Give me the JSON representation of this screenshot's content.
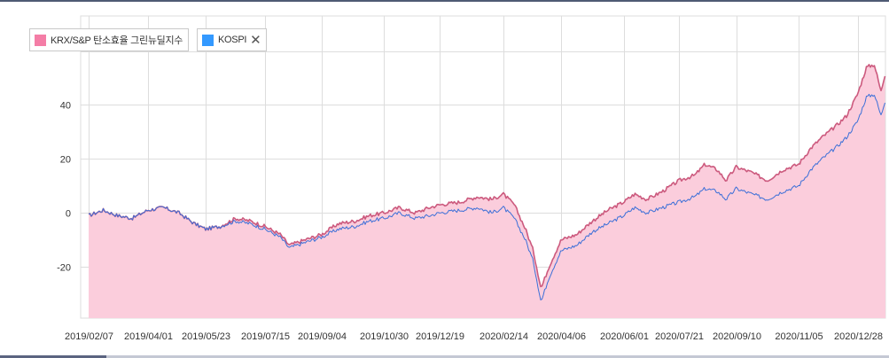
{
  "legend": [
    {
      "label": "KRX/S&P 탄소효율 그린뉴딜지수",
      "color": "#f47da6",
      "closable": false
    },
    {
      "label": "KOSPI",
      "color": "#3399ff",
      "closable": true,
      "close_icon": "close-icon"
    }
  ],
  "colors": {
    "index_line": "#cc5a7e",
    "index_fill": "#fbcddc",
    "kospi_line": "#3b6fd8",
    "grid": "#dddddd"
  },
  "chart_data": {
    "type": "area",
    "title": "",
    "xlabel": "",
    "ylabel": "",
    "ylim": [
      -39,
      73
    ],
    "y_ticks": [
      -20,
      0,
      20,
      40
    ],
    "y_tick_labels": [
      "-20",
      "0",
      "20",
      "40"
    ],
    "x_tick_labels": [
      "2019/02/07",
      "2019/04/01",
      "2019/05/23",
      "2019/07/15",
      "2019/09/04",
      "2019/10/30",
      "2019/12/19",
      "2020/02/14",
      "2020/04/06",
      "2020/06/01",
      "2020/07/21",
      "2020/09/10",
      "2020/11/05",
      "2020/12/28"
    ],
    "grid": true,
    "legend_position": "top-left",
    "series": [
      {
        "name": "KRX/S&P 탄소효율 그린뉴딜지수",
        "style": "area",
        "dates": [
          "2019/02/07",
          "2019/02/20",
          "2019/03/05",
          "2019/03/18",
          "2019/04/01",
          "2019/04/15",
          "2019/04/29",
          "2019/05/13",
          "2019/05/23",
          "2019/06/05",
          "2019/06/19",
          "2019/07/02",
          "2019/07/15",
          "2019/07/29",
          "2019/08/06",
          "2019/08/20",
          "2019/09/04",
          "2019/09/19",
          "2019/10/04",
          "2019/10/17",
          "2019/10/30",
          "2019/11/13",
          "2019/11/27",
          "2019/12/10",
          "2019/12/19",
          "2020/01/06",
          "2020/01/22",
          "2020/02/04",
          "2020/02/14",
          "2020/02/24",
          "2020/03/05",
          "2020/03/12",
          "2020/03/19",
          "2020/03/26",
          "2020/04/06",
          "2020/04/20",
          "2020/05/04",
          "2020/05/18",
          "2020/06/01",
          "2020/06/11",
          "2020/06/22",
          "2020/07/06",
          "2020/07/21",
          "2020/08/04",
          "2020/08/13",
          "2020/08/24",
          "2020/09/01",
          "2020/09/10",
          "2020/09/24",
          "2020/10/08",
          "2020/10/22",
          "2020/11/05",
          "2020/11/16",
          "2020/11/26",
          "2020/12/08",
          "2020/12/18",
          "2020/12/28",
          "2021/01/05",
          "2021/01/12",
          "2021/01/18",
          "2021/01/22"
        ],
        "values": [
          -1,
          1,
          -1,
          -2,
          1,
          2,
          0,
          -4,
          -6,
          -5,
          -2,
          -3,
          -5,
          -8,
          -12,
          -10,
          -8,
          -4,
          -3,
          -1,
          0,
          2,
          0,
          2,
          3,
          4,
          6,
          5,
          7,
          3,
          -6,
          -14,
          -28,
          -20,
          -10,
          -8,
          -3,
          1,
          4,
          7,
          5,
          8,
          12,
          14,
          18,
          16,
          12,
          17,
          15,
          12,
          16,
          18,
          24,
          28,
          32,
          36,
          44,
          54,
          55,
          45,
          52
        ]
      },
      {
        "name": "KOSPI",
        "style": "line",
        "dates": [
          "2019/02/07",
          "2019/02/20",
          "2019/03/05",
          "2019/03/18",
          "2019/04/01",
          "2019/04/15",
          "2019/04/29",
          "2019/05/13",
          "2019/05/23",
          "2019/06/05",
          "2019/06/19",
          "2019/07/02",
          "2019/07/15",
          "2019/07/29",
          "2019/08/06",
          "2019/08/20",
          "2019/09/04",
          "2019/09/19",
          "2019/10/04",
          "2019/10/17",
          "2019/10/30",
          "2019/11/13",
          "2019/11/27",
          "2019/12/10",
          "2019/12/19",
          "2020/01/06",
          "2020/01/22",
          "2020/02/04",
          "2020/02/14",
          "2020/02/24",
          "2020/03/05",
          "2020/03/12",
          "2020/03/19",
          "2020/03/26",
          "2020/04/06",
          "2020/04/20",
          "2020/05/04",
          "2020/05/18",
          "2020/06/01",
          "2020/06/11",
          "2020/06/22",
          "2020/07/06",
          "2020/07/21",
          "2020/08/04",
          "2020/08/13",
          "2020/08/24",
          "2020/09/01",
          "2020/09/10",
          "2020/09/24",
          "2020/10/08",
          "2020/10/22",
          "2020/11/05",
          "2020/11/16",
          "2020/11/26",
          "2020/12/08",
          "2020/12/18",
          "2020/12/28",
          "2021/01/05",
          "2021/01/12",
          "2021/01/18",
          "2021/01/22"
        ],
        "values": [
          -1,
          1,
          -1,
          -2,
          1,
          2,
          0,
          -4,
          -6,
          -5,
          -3,
          -4,
          -6,
          -9,
          -13,
          -11,
          -9,
          -6,
          -5,
          -3,
          -2,
          0,
          -2,
          -1,
          0,
          1,
          2,
          0,
          2,
          -2,
          -10,
          -18,
          -33,
          -24,
          -14,
          -12,
          -7,
          -4,
          -1,
          2,
          0,
          2,
          4,
          6,
          9,
          8,
          5,
          9,
          7,
          5,
          8,
          10,
          16,
          20,
          24,
          28,
          34,
          43,
          44,
          36,
          42
        ]
      }
    ]
  }
}
